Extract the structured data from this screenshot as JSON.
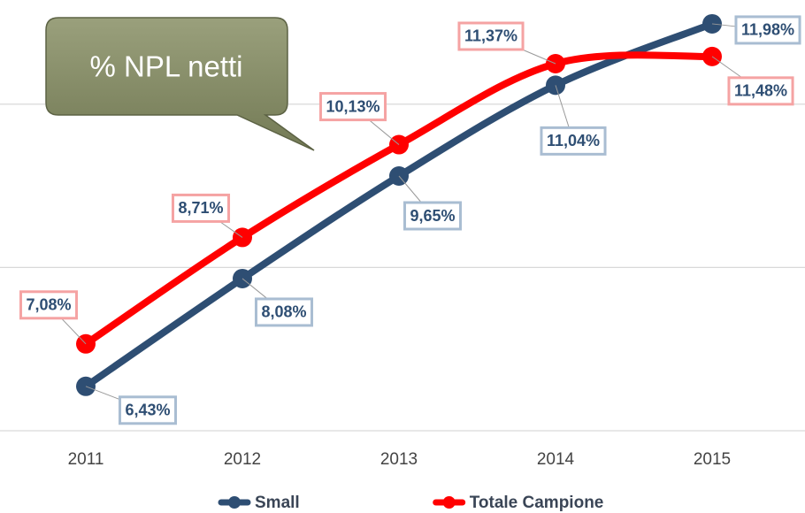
{
  "chart_data": {
    "type": "line",
    "annotation": "% NPL netti",
    "categories": [
      "2011",
      "2012",
      "2013",
      "2014",
      "2015"
    ],
    "series": [
      {
        "name": "Small",
        "color": "#2e4e73",
        "label_border": "#a9bdd2",
        "values": [
          6.43,
          8.08,
          9.65,
          11.04,
          11.98
        ],
        "value_labels": [
          "6,43%",
          "8,08%",
          "9,65%",
          "11,04%",
          "11,98%"
        ]
      },
      {
        "name": "Totale Campione",
        "color": "#ff0000",
        "label_border": "#f5a3a3",
        "values": [
          7.08,
          8.71,
          10.13,
          11.37,
          11.48
        ],
        "value_labels": [
          "7,08%",
          "8,71%",
          "10,13%",
          "11,37%",
          "11,48%"
        ]
      }
    ],
    "ylim": [
      5.75,
      12.25
    ],
    "yticks": [
      5.75,
      8.25,
      10.75
    ],
    "grid": true,
    "smooth": true,
    "legend": "bottom"
  }
}
